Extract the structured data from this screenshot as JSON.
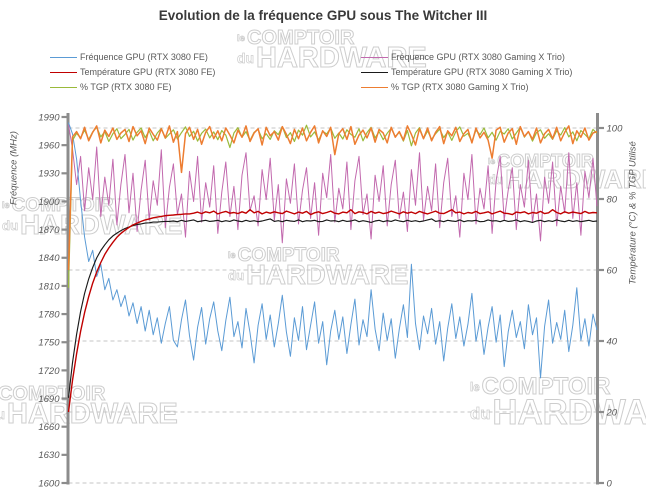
{
  "watermark": {
    "prefix1": "le",
    "word1": "COMPTOIR",
    "prefix2": "du",
    "word2": "HARDWARE"
  },
  "chart_data": {
    "type": "line",
    "title": "Evolution de la fréquence GPU sous The Witcher III",
    "grid": "horizontal-dashed",
    "legend_position": "top-two-columns",
    "axes": {
      "left": {
        "label": "Fréquence (MHz)",
        "min": 1600,
        "max": 1990,
        "step": 30,
        "ticks": [
          1990,
          1960,
          1930,
          1900,
          1870,
          1840,
          1810,
          1780,
          1750,
          1720,
          1690,
          1660,
          1630,
          1600
        ]
      },
      "right": {
        "label": "Température (°C) & % TGP Utilisé",
        "min": 0,
        "max": 100,
        "step": 20,
        "ticks": [
          100,
          80,
          60,
          40,
          20,
          0
        ]
      }
    },
    "series": [
      {
        "name": "Fréquence GPU (RTX 3080 FE)",
        "axis": "left",
        "color": "#5B9BD5",
        "values": [
          1984,
          1972,
          1945,
          1901,
          1862,
          1836,
          1848,
          1820,
          1833,
          1806,
          1818,
          1795,
          1806,
          1788,
          1800,
          1778,
          1792,
          1770,
          1788,
          1762,
          1784,
          1758,
          1776,
          1749,
          1770,
          1788,
          1752,
          1745,
          1774,
          1795,
          1757,
          1731,
          1766,
          1787,
          1748,
          1775,
          1793,
          1762,
          1741,
          1773,
          1798,
          1756,
          1772,
          1744,
          1786,
          1760,
          1728,
          1768,
          1791,
          1753,
          1779,
          1745,
          1770,
          1800,
          1761,
          1735,
          1776,
          1752,
          1788,
          1742,
          1768,
          1793,
          1749,
          1772,
          1726,
          1762,
          1784,
          1753,
          1777,
          1738,
          1769,
          1796,
          1747,
          1774,
          1756,
          1806,
          1764,
          1741,
          1781,
          1752,
          1775,
          1733,
          1764,
          1790,
          1755,
          1833,
          1770,
          1742,
          1778,
          1759,
          1786,
          1748,
          1772,
          1730,
          1765,
          1791,
          1754,
          1777,
          1746,
          1769,
          1802,
          1751,
          1774,
          1737,
          1766,
          1788,
          1750,
          1779,
          1724,
          1761,
          1784,
          1755,
          1772,
          1743,
          1790,
          1758,
          1776,
          1712,
          1767,
          1795,
          1749,
          1771,
          1753,
          1784,
          1740,
          1768,
          1808,
          1752,
          1775,
          1746,
          1780,
          1763
        ]
      },
      {
        "name": "Fréquence GPU (RTX 3080 Gaming X Trio)",
        "axis": "left",
        "color": "#C269AE",
        "values": [
          1982,
          1956,
          1918,
          1948,
          1890,
          1936,
          1902,
          1958,
          1884,
          1926,
          1896,
          1945,
          1875,
          1918,
          1950,
          1888,
          1930,
          1868,
          1912,
          1944,
          1880,
          1922,
          1896,
          1955,
          1872,
          1915,
          1940,
          1886,
          1908,
          1862,
          1932,
          1900,
          1948,
          1878,
          1920,
          1894,
          1938,
          1866,
          1910,
          1942,
          1884,
          1916,
          1870,
          1928,
          1952,
          1890,
          1906,
          1874,
          1934,
          1902,
          1946,
          1880,
          1918,
          1856,
          1924,
          1898,
          1940,
          1876,
          1912,
          1936,
          1882,
          1920,
          1864,
          1930,
          1904,
          1950,
          1878,
          1914,
          1892,
          1942,
          1870,
          1922,
          1948,
          1886,
          1908,
          1860,
          1928,
          1900,
          1938,
          1874,
          1918,
          1944,
          1882,
          1910,
          1868,
          1934,
          1896,
          1952,
          1880,
          1916,
          1890,
          1940,
          1872,
          1920,
          1946,
          1884,
          1906,
          1862,
          1930,
          1902,
          1950,
          1876,
          1914,
          1892,
          1938,
          1866,
          1922,
          1948,
          1880,
          1912,
          1936,
          1870,
          1918,
          1894,
          1944,
          1878,
          1908,
          1858,
          1926,
          1898,
          1942,
          1874,
          1916,
          1888,
          1952,
          1882,
          1920,
          1864,
          1932,
          1904,
          1946,
          1895
        ]
      },
      {
        "name": "Température GPU (RTX 3080 FE)",
        "axis": "right",
        "color": "#C00000",
        "values": [
          20.0,
          28.9,
          36.4,
          42.7,
          48.0,
          52.5,
          56.3,
          59.4,
          62.1,
          64.4,
          66.2,
          67.8,
          69.2,
          70.3,
          71.2,
          72.0,
          72.7,
          73.2,
          73.7,
          74.1,
          74.4,
          74.7,
          74.9,
          75.1,
          75.3,
          75.4,
          75.5,
          75.6,
          75.7,
          75.8,
          75.8,
          76.0,
          76.3,
          75.9,
          76.4,
          76.1,
          76.6,
          75.8,
          76.2,
          76.5,
          76.0,
          76.2,
          75.9,
          76.4,
          76.0,
          77.0,
          76.1,
          76.5,
          75.8,
          76.3,
          76.0,
          76.4,
          76.1,
          75.9,
          76.6,
          76.2,
          75.8,
          76.3,
          76.0,
          76.5,
          75.6,
          76.1,
          76.4,
          75.9,
          76.2,
          76.6,
          76.0,
          75.8,
          76.3,
          76.1,
          77.0,
          75.9,
          76.4,
          76.2,
          75.8,
          76.5,
          76.0,
          76.3,
          75.9,
          76.1,
          76.6,
          76.2,
          75.8,
          76.4,
          76.0,
          76.3,
          75.9,
          76.5,
          76.1,
          75.8,
          76.2,
          76.6,
          76.0,
          75.9,
          76.4,
          77.0,
          76.1,
          76.3,
          75.8,
          76.2,
          76.0,
          76.5,
          75.9,
          76.1,
          76.4,
          75.8,
          76.2,
          76.6,
          76.0,
          75.9,
          75.6,
          76.3,
          76.1,
          76.4,
          75.8,
          76.2,
          76.0,
          76.5,
          75.9,
          76.1,
          77.0,
          76.2,
          75.8,
          76.4,
          76.0,
          76.3,
          76.1,
          75.9,
          76.5,
          76.0,
          76.2,
          76.1
        ]
      },
      {
        "name": "Température GPU (RTX 3080 Gaming X Trio)",
        "axis": "right",
        "color": "#1a1a1a",
        "values": [
          24.0,
          33.9,
          41.9,
          48.3,
          53.4,
          57.5,
          60.7,
          63.4,
          65.5,
          67.1,
          68.5,
          69.6,
          70.4,
          71.1,
          71.7,
          72.1,
          72.5,
          72.8,
          73.0,
          73.2,
          73.3,
          73.5,
          73.5,
          73.6,
          73.7,
          73.7,
          73.8,
          73.6,
          74.0,
          73.7,
          73.9,
          74.1,
          73.6,
          73.8,
          74.0,
          73.7,
          73.8,
          74.0,
          73.6,
          73.9,
          73.7,
          74.1,
          73.8,
          73.6,
          74.0,
          73.7,
          73.9,
          73.6,
          73.8,
          74.1,
          74.4,
          73.7,
          73.9,
          73.6,
          74.0,
          73.8,
          73.7,
          74.1,
          73.6,
          73.9,
          73.8,
          74.0,
          73.6,
          73.7,
          74.1,
          73.8,
          73.9,
          73.6,
          74.0,
          73.7,
          73.8,
          74.1,
          73.6,
          73.9,
          73.7,
          73.4,
          73.8,
          74.0,
          73.6,
          73.9,
          73.7,
          74.1,
          73.8,
          73.6,
          74.0,
          73.7,
          73.9,
          73.6,
          73.8,
          74.1,
          74.4,
          73.7,
          73.9,
          73.6,
          74.0,
          73.8,
          73.7,
          74.1,
          73.6,
          73.9,
          73.8,
          74.0,
          73.6,
          73.7,
          74.1,
          73.8,
          73.9,
          73.6,
          74.0,
          73.7,
          73.8,
          74.1,
          73.6,
          73.9,
          73.7,
          73.4,
          73.8,
          74.0,
          73.6,
          73.9,
          73.7,
          74.1,
          73.8,
          73.6,
          74.0,
          73.7,
          73.9,
          73.6,
          73.8,
          74.0,
          73.7,
          73.8
        ]
      },
      {
        "name": "% TGP (RTX 3080 FE)",
        "axis": "right",
        "color": "#9ABA3A",
        "values": [
          55.0,
          96.5,
          98.5,
          97.2,
          99.4,
          96.8,
          98.9,
          100.2,
          97.5,
          99.0,
          96.2,
          98.4,
          99.8,
          97.0,
          98.2,
          99.6,
          96.6,
          98.8,
          100.0,
          97.3,
          99.2,
          96.4,
          98.6,
          99.9,
          97.1,
          98.3,
          99.5,
          96.9,
          98.7,
          100.3,
          97.6,
          99.1,
          96.3,
          98.5,
          99.7,
          97.2,
          98.9,
          96.7,
          99.3,
          98.0,
          94.5,
          98.6,
          100.1,
          97.4,
          99.0,
          96.5,
          98.8,
          99.6,
          97.0,
          98.4,
          96.8,
          99.2,
          98.1,
          100.4,
          97.3,
          98.7,
          96.2,
          99.4,
          98.0,
          100.8,
          97.5,
          98.9,
          96.6,
          99.1,
          98.3,
          100.0,
          97.1,
          98.6,
          96.9,
          99.5,
          98.2,
          97.4,
          99.8,
          96.4,
          98.7,
          100.2,
          97.2,
          99.0,
          96.7,
          98.5,
          99.9,
          97.6,
          98.8,
          96.3,
          99.3,
          95.0,
          98.6,
          100.1,
          97.0,
          99.2,
          96.8,
          98.4,
          99.7,
          97.3,
          98.9,
          96.5,
          99.0,
          100.3,
          97.7,
          98.5,
          96.2,
          99.4,
          98.1,
          100.0,
          97.2,
          98.8,
          96.6,
          99.1,
          98.3,
          99.8,
          96.9,
          98.6,
          100.2,
          97.4,
          99.0,
          96.3,
          98.7,
          99.5,
          97.1,
          98.4,
          96.8,
          99.2,
          98.0,
          100.1,
          97.5,
          98.9,
          96.4,
          99.3,
          98.2,
          97.0,
          99.6,
          98.5
        ]
      },
      {
        "name": "% TGP (RTX 3080 Gaming X Trio)",
        "axis": "right",
        "color": "#ED7D31",
        "values": [
          60.0,
          97.5,
          99.0,
          97.0,
          100.2,
          96.4,
          98.8,
          100.6,
          95.8,
          99.4,
          97.6,
          100.0,
          96.8,
          98.6,
          99.6,
          96.2,
          100.4,
          97.8,
          99.2,
          95.6,
          100.0,
          98.2,
          96.6,
          99.8,
          97.2,
          100.6,
          96.0,
          99.0,
          87.5,
          98.4,
          100.2,
          96.8,
          99.6,
          95.4,
          98.8,
          100.4,
          97.0,
          99.2,
          96.4,
          100.0,
          98.0,
          95.8,
          99.4,
          97.4,
          100.6,
          96.2,
          98.6,
          99.8,
          95.2,
          100.2,
          97.8,
          99.0,
          96.6,
          100.4,
          98.2,
          95.6,
          99.6,
          97.0,
          100.0,
          96.4,
          98.8,
          100.6,
          95.8,
          99.2,
          97.6,
          100.2,
          92.5,
          98.4,
          99.8,
          96.8,
          100.4,
          95.4,
          98.0,
          99.4,
          97.2,
          100.0,
          96.0,
          99.6,
          98.6,
          95.8,
          100.2,
          97.4,
          99.0,
          96.6,
          100.6,
          98.2,
          95.2,
          99.8,
          97.0,
          100.0,
          96.4,
          98.8,
          100.4,
          95.6,
          99.2,
          97.8,
          100.2,
          96.2,
          98.4,
          99.6,
          95.8,
          100.0,
          97.2,
          98.8,
          96.6,
          91.5,
          99.4,
          100.2,
          96.0,
          98.6,
          99.8,
          95.4,
          100.4,
          97.6,
          99.0,
          96.8,
          100.0,
          95.8,
          98.4,
          99.6,
          97.0,
          100.2,
          96.4,
          98.8,
          100.6,
          95.6,
          99.2,
          97.4,
          100.0,
          96.6,
          98.6,
          99.0
        ]
      }
    ]
  }
}
